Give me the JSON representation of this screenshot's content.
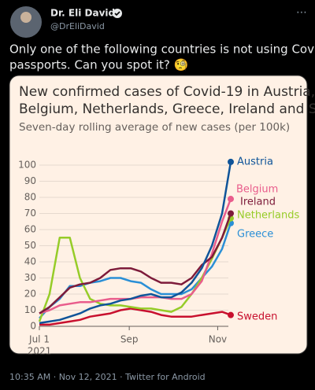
{
  "tweet": {
    "name": "Dr. Eli David",
    "handle": "@DrEliDavid",
    "menu": "⋯",
    "text_lines": [
      "Only one of the following countries is not using Covid",
      "passports. Can you spot it? 🧐"
    ],
    "footer": "10:35 AM · Nov 12, 2021 · Twitter for Android"
  },
  "chart_data": {
    "type": "line",
    "title_lines": [
      "New confirmed cases of Covid-19 in Austria,",
      "Belgium, Netherlands, Greece, Ireland and Sweden"
    ],
    "subtitle": "Seven-day rolling average of new cases (per 100k)",
    "x": [
      "2021-07-01",
      "2021-07-08",
      "2021-07-15",
      "2021-07-22",
      "2021-07-29",
      "2021-08-05",
      "2021-08-12",
      "2021-08-19",
      "2021-08-26",
      "2021-09-02",
      "2021-09-09",
      "2021-09-16",
      "2021-09-23",
      "2021-09-30",
      "2021-10-07",
      "2021-10-14",
      "2021-10-21",
      "2021-10-28",
      "2021-11-04",
      "2021-11-10"
    ],
    "xlim": [
      "2021-07-01",
      "2021-11-10"
    ],
    "xticks": [
      {
        "value": "2021-07-01",
        "label": "Jul 1"
      },
      {
        "value": "2021-09-01",
        "label": "Sep"
      },
      {
        "value": "2021-11-01",
        "label": "Nov"
      }
    ],
    "xtick_year": "2021",
    "ylim": [
      0,
      100
    ],
    "yticks": [
      0,
      10,
      20,
      30,
      40,
      50,
      60,
      70,
      80,
      90,
      100
    ],
    "grid": true,
    "series": [
      {
        "name": "Sweden",
        "color": "#c8102e",
        "values": [
          1,
          1,
          2,
          3,
          4,
          6,
          7,
          8,
          10,
          11,
          10,
          9,
          7,
          6,
          6,
          6,
          7,
          8,
          9,
          7
        ]
      },
      {
        "name": "Greece",
        "color": "#2a8fd6",
        "values": [
          5,
          12,
          17,
          25,
          25,
          27,
          28,
          30,
          30,
          28,
          27,
          23,
          20,
          20,
          20,
          23,
          30,
          37,
          48,
          64
        ]
      },
      {
        "name": "Netherlands",
        "color": "#96cc28",
        "values": [
          3,
          20,
          55,
          55,
          30,
          17,
          14,
          13,
          13,
          12,
          11,
          11,
          10,
          9,
          12,
          20,
          30,
          42,
          55,
          67
        ]
      },
      {
        "name": "Belgium",
        "color": "#e95d8c",
        "values": [
          8,
          10,
          13,
          14,
          15,
          15,
          16,
          17,
          17,
          17,
          18,
          18,
          18,
          17,
          17,
          20,
          28,
          45,
          65,
          79
        ]
      },
      {
        "name": "Ireland",
        "color": "#7d1b3a",
        "values": [
          8,
          12,
          18,
          24,
          26,
          27,
          30,
          35,
          36,
          36,
          34,
          30,
          27,
          27,
          26,
          30,
          38,
          43,
          55,
          70
        ]
      },
      {
        "name": "Austria",
        "color": "#0f5499",
        "values": [
          2,
          3,
          4,
          6,
          8,
          11,
          13,
          14,
          16,
          17,
          19,
          20,
          18,
          18,
          21,
          27,
          36,
          50,
          70,
          102
        ]
      }
    ]
  }
}
